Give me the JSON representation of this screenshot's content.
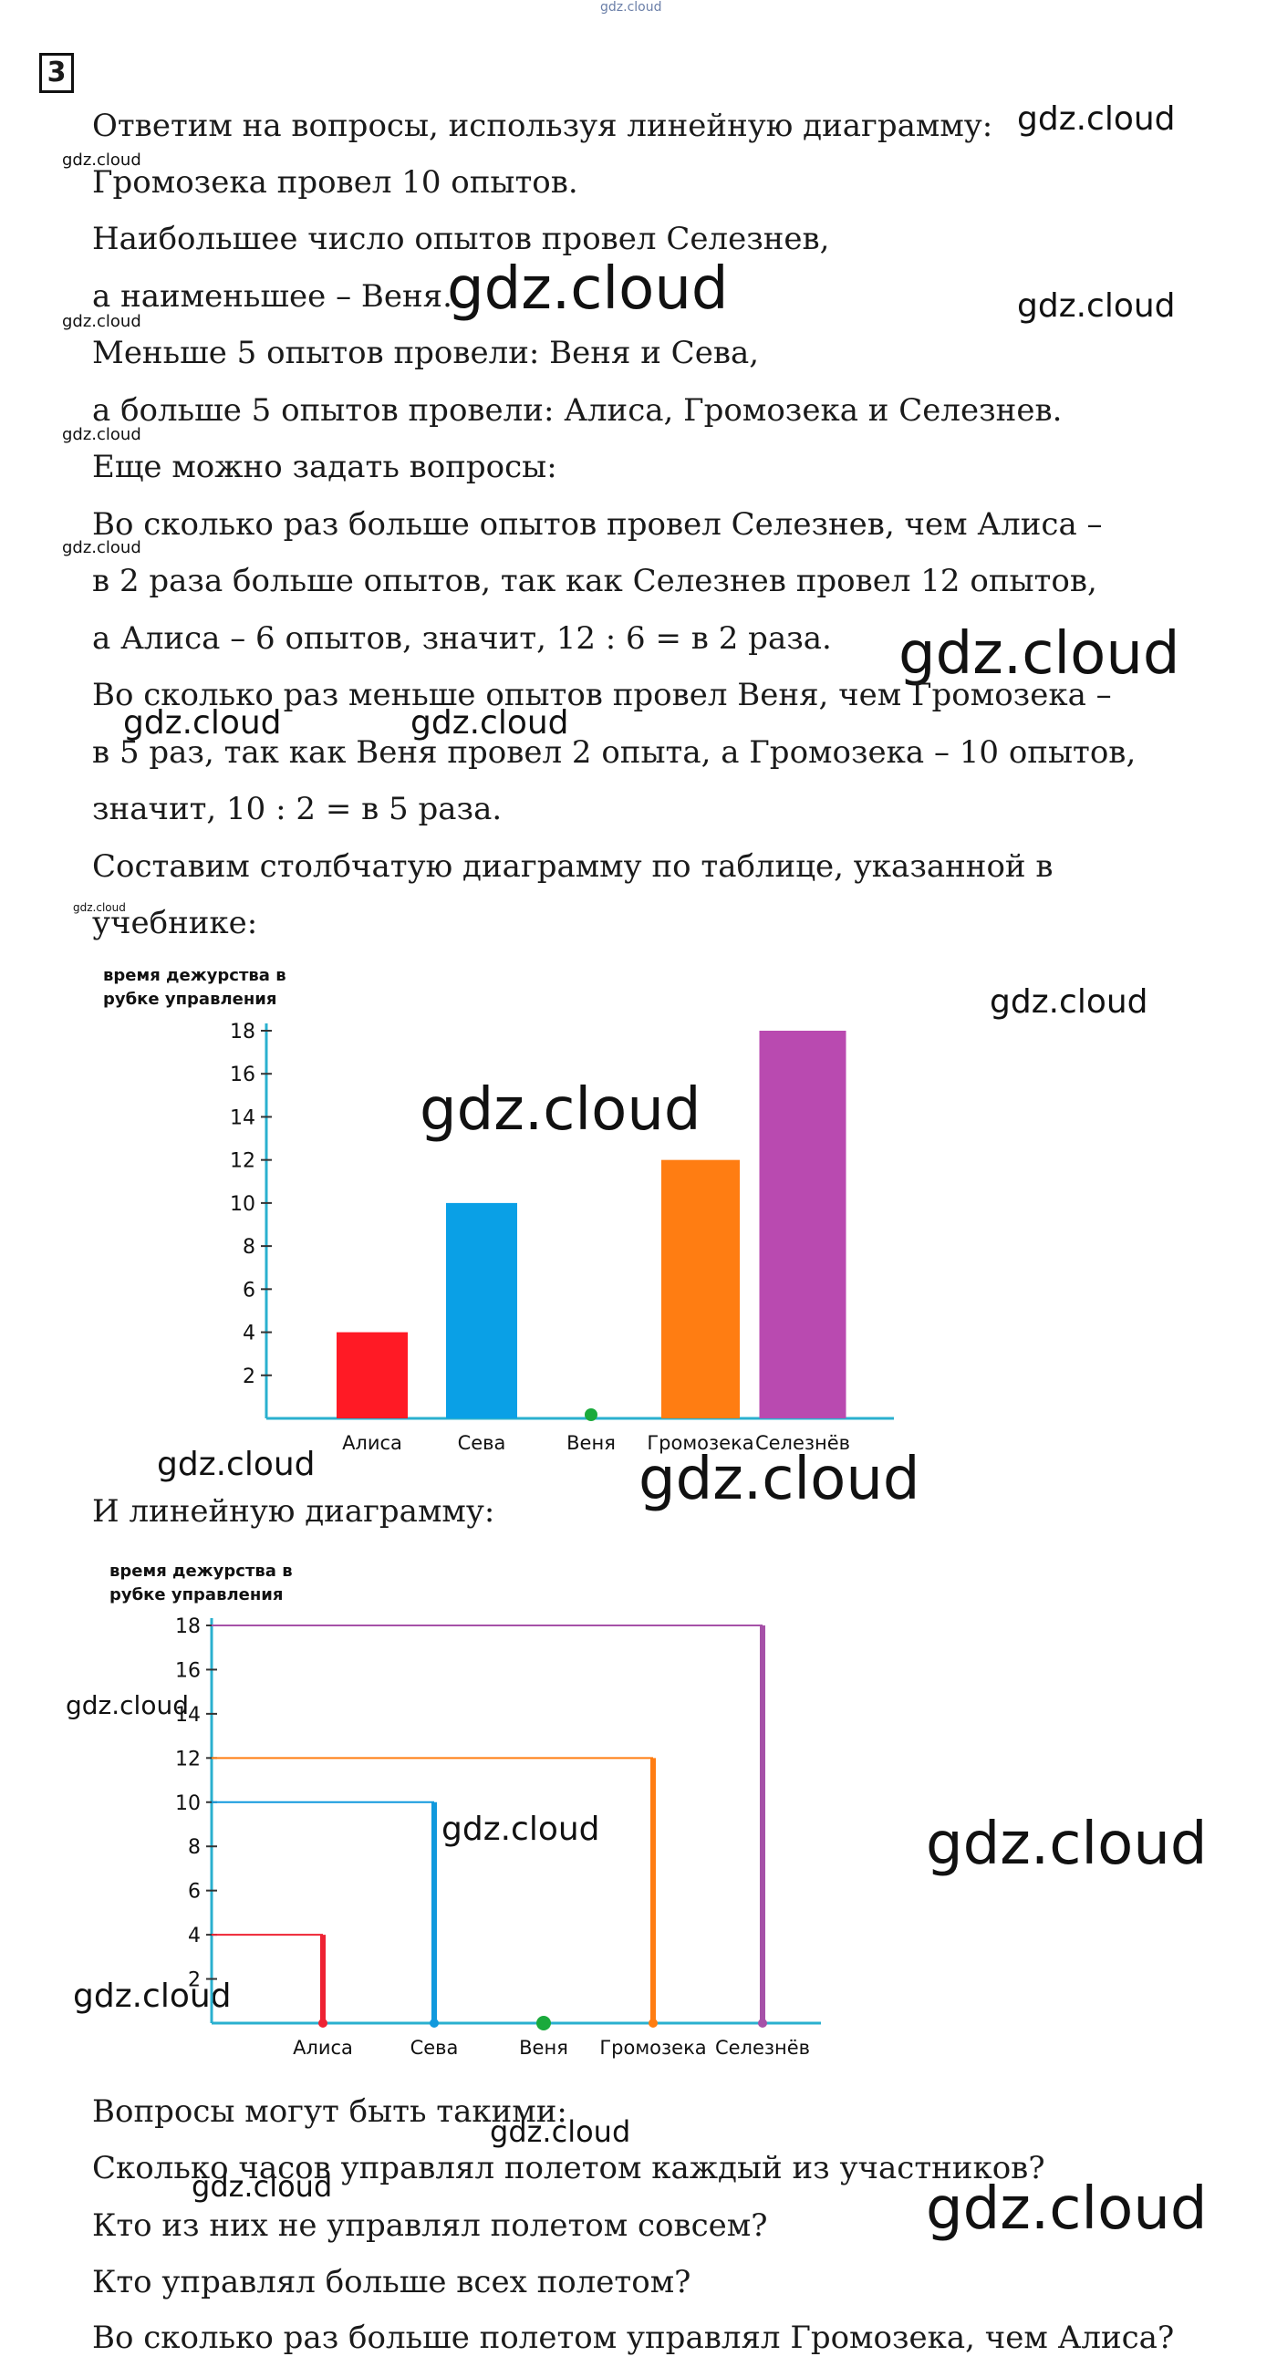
{
  "task_number": "3",
  "watermarks": {
    "site": "gdz.cloud"
  },
  "answer_lines": [
    "Ответим на вопросы, используя линейную диаграмму:",
    "Громозека провел 10 опытов.",
    "Наибольшее число опытов провел Селезнев,",
    "а наименьшее – Веня.",
    "Меньше 5 опытов провели: Веня и Сева,",
    "а больше 5 опытов провели: Алиса, Громозека и Селезнев.",
    "Еще можно задать вопросы:",
    "Во сколько раз больше опытов провел Селезнев, чем Алиса –",
    "в 2 раза больше опытов, так как Селезнев провел 12 опытов,",
    "а Алиса – 6 опытов, значит, 12 : 6 = в 2 раза.",
    "Во сколько раз меньше опытов провел Веня, чем Громозека –",
    "в 5 раз, так как Веня провел 2 опыта, а Громозека – 10 опытов,",
    "значит, 10 : 2 = в 5 раза.",
    "Составим столбчатую диаграмму по таблице, указанной в",
    "учебнике:"
  ],
  "line_chart_intro": "И линейную диаграмму:",
  "question_lines": [
    "Вопросы могут быть такими:",
    "Сколько часов управлял полетом каждый из участников?",
    "Кто из них не управлял полетом совсем?",
    "Кто управлял больше всех полетом?",
    "Во сколько раз больше полетом управлял Громозека, чем Алиса?"
  ],
  "chart_data": [
    {
      "type": "bar",
      "ylabel": "время дежурства в рубке управления",
      "ylabel_lines": [
        "время дежурства в",
        "рубке управления"
      ],
      "categories": [
        "Алиса",
        "Сева",
        "Веня",
        "Громозека",
        "Селезнёв"
      ],
      "values": [
        4,
        10,
        0,
        12,
        18
      ],
      "colors": [
        "#ff1a25",
        "#0aa0e6",
        "#1aaa3c",
        "#ff7d12",
        "#b94ab0"
      ],
      "yticks": [
        2,
        4,
        6,
        8,
        10,
        12,
        14,
        16,
        18
      ],
      "ylim": [
        0,
        18
      ],
      "axis_color": "#2ab0cf",
      "grid": false
    },
    {
      "type": "line",
      "ylabel": "время дежурства в рубке управления",
      "ylabel_lines": [
        "время дежурства в",
        "рубке управления"
      ],
      "categories": [
        "Алиса",
        "Сева",
        "Веня",
        "Громозека",
        "Селезнёв"
      ],
      "values": [
        4,
        10,
        0,
        12,
        18
      ],
      "colors": [
        "#ee2233",
        "#1199dd",
        "#1aaa3c",
        "#ff7d12",
        "#a651a8"
      ],
      "yticks": [
        2,
        4,
        6,
        8,
        10,
        12,
        14,
        16,
        18
      ],
      "ylim": [
        0,
        18
      ],
      "axis_color": "#2ab0cf",
      "grid": false
    }
  ]
}
